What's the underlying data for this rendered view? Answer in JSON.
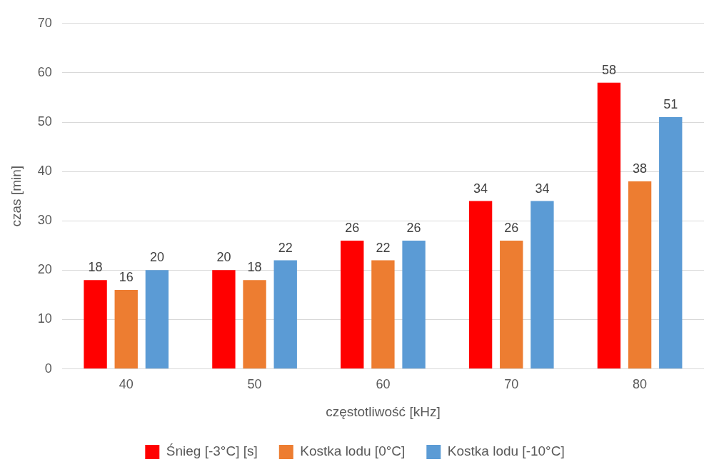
{
  "chart_data": {
    "type": "bar",
    "xlabel": "częstotliwość [kHz]",
    "ylabel": "czas [min]",
    "categories": [
      "40",
      "50",
      "60",
      "70",
      "80"
    ],
    "series": [
      {
        "name": "Śnieg [-3°C] [s]",
        "color": "#ff0000",
        "values": [
          18,
          20,
          26,
          34,
          58
        ]
      },
      {
        "name": "Kostka lodu [0°C]",
        "color": "#ed7d31",
        "values": [
          16,
          18,
          22,
          26,
          38
        ]
      },
      {
        "name": "Kostka lodu [-10°C]",
        "color": "#5b9bd5",
        "values": [
          20,
          22,
          26,
          34,
          51
        ]
      }
    ],
    "data_labels": true,
    "ylim": [
      0,
      70
    ],
    "yticks": [
      0,
      10,
      20,
      30,
      40,
      50,
      60,
      70
    ],
    "grid": "y",
    "legend": "bottom"
  }
}
